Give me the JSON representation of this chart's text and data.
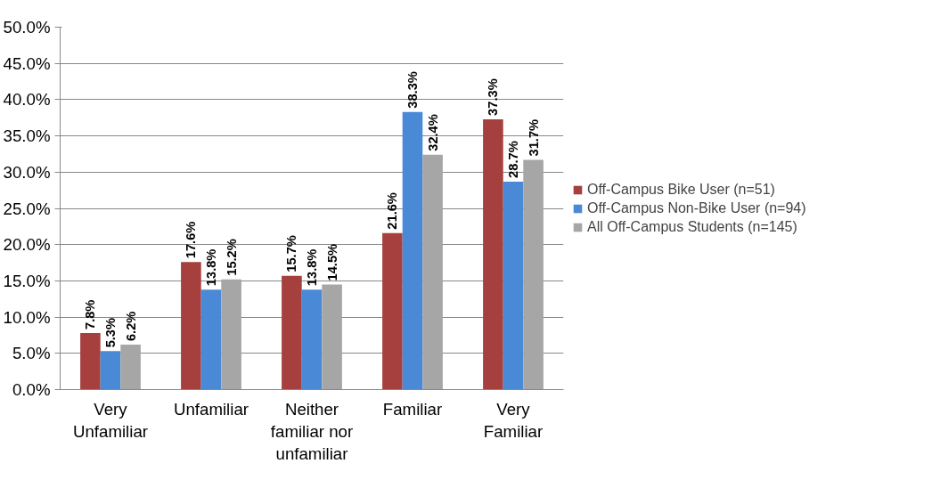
{
  "chart_data": {
    "type": "bar",
    "categories": [
      "Very Unfamiliar",
      "Unfamiliar",
      "Neither familiar nor unfamiliar",
      "Familiar",
      "Very Familiar"
    ],
    "series": [
      {
        "name": "Off-Campus Bike User (n=51)",
        "color": "#a5403e",
        "values": [
          7.8,
          17.6,
          15.7,
          21.6,
          37.3
        ],
        "value_labels": [
          "7.8%",
          "17.6%",
          "15.7%",
          "21.6%",
          "37.3%"
        ]
      },
      {
        "name": "Off-Campus Non-Bike User (n=94)",
        "color": "#4a89d6",
        "values": [
          5.3,
          13.8,
          13.8,
          38.3,
          28.7
        ],
        "value_labels": [
          "5.3%",
          "13.8%",
          "13.8%",
          "38.3%",
          "28.7%"
        ]
      },
      {
        "name": "All Off-Campus Students (n=145)",
        "color": "#a6a6a6",
        "values": [
          6.2,
          15.2,
          14.5,
          32.4,
          31.7
        ],
        "value_labels": [
          "6.2%",
          "15.2%",
          "14.5%",
          "32.4%",
          "31.7%"
        ]
      }
    ],
    "ylim": [
      0,
      50
    ],
    "yticks": [
      {
        "value": 0,
        "label": "0.0%"
      },
      {
        "value": 5,
        "label": "5.0%"
      },
      {
        "value": 10,
        "label": "10.0%"
      },
      {
        "value": 15,
        "label": "15.0%"
      },
      {
        "value": 20,
        "label": "20.0%"
      },
      {
        "value": 25,
        "label": "25.0%"
      },
      {
        "value": 30,
        "label": "30.0%"
      },
      {
        "value": 35,
        "label": "35.0%"
      },
      {
        "value": 40,
        "label": "40.0%"
      },
      {
        "value": 45,
        "label": "45.0%"
      },
      {
        "value": 50,
        "label": "50.0%"
      }
    ],
    "grid": "y",
    "legend": "right"
  }
}
